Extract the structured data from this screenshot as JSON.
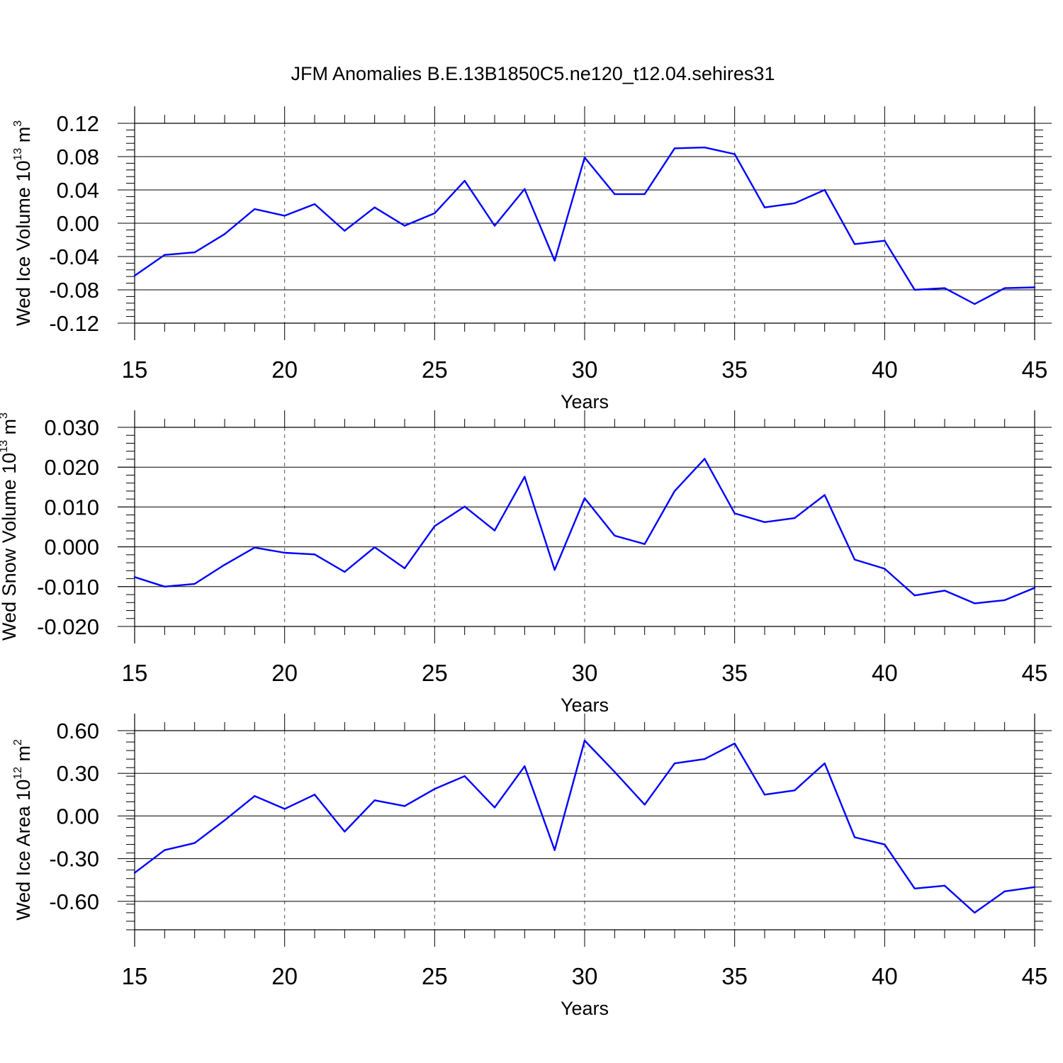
{
  "title": "JFM Anomalies B.E.13B1850C5.ne120_t12.04.sehires31",
  "line_color": "#0000ff",
  "chart_data": [
    {
      "type": "line",
      "ylabel_main": "Wed Ice Volume 10",
      "ylabel_exp": "13",
      "ylabel_unit": " m",
      "ylabel_unit_exp": "3",
      "xlabel": "Years",
      "xlim": [
        15,
        45
      ],
      "ylim": [
        -0.12,
        0.12
      ],
      "yticks": [
        -0.12,
        -0.08,
        -0.04,
        0.0,
        0.04,
        0.08,
        0.12
      ],
      "ytick_labels": [
        "-0.12",
        "-0.08",
        "-0.04",
        "0.00",
        "0.04",
        "0.08",
        "0.12"
      ],
      "xticks": [
        15,
        20,
        25,
        30,
        35,
        40,
        45
      ],
      "xtick_labels": [
        "15",
        "20",
        "25",
        "30",
        "35",
        "40",
        "45"
      ],
      "grid_x": true,
      "x": [
        15,
        16,
        17,
        18,
        19,
        20,
        21,
        22,
        23,
        24,
        25,
        26,
        27,
        28,
        29,
        30,
        31,
        32,
        33,
        34,
        35,
        36,
        37,
        38,
        39,
        40,
        41,
        42,
        43,
        44,
        45
      ],
      "y": [
        -0.063,
        -0.038,
        -0.035,
        -0.013,
        0.017,
        0.009,
        0.023,
        -0.009,
        0.019,
        -0.003,
        0.012,
        0.051,
        -0.003,
        0.041,
        -0.045,
        0.079,
        0.035,
        0.035,
        0.09,
        0.091,
        0.083,
        0.019,
        0.024,
        0.04,
        -0.025,
        -0.021,
        -0.08,
        -0.078,
        -0.097,
        -0.078,
        -0.077
      ]
    },
    {
      "type": "line",
      "ylabel_main": "Wed Snow Volume 10",
      "ylabel_exp": "13",
      "ylabel_unit": " m",
      "ylabel_unit_exp": "3",
      "xlabel": "Years",
      "xlim": [
        15,
        45
      ],
      "ylim": [
        -0.02,
        0.03
      ],
      "yticks": [
        -0.02,
        -0.01,
        0.0,
        0.01,
        0.02,
        0.03
      ],
      "ytick_labels": [
        "-0.020",
        "-0.010",
        "0.000",
        "0.010",
        "0.020",
        "0.030"
      ],
      "xticks": [
        15,
        20,
        25,
        30,
        35,
        40,
        45
      ],
      "xtick_labels": [
        "15",
        "20",
        "25",
        "30",
        "35",
        "40",
        "45"
      ],
      "grid_x": true,
      "x": [
        15,
        16,
        17,
        18,
        19,
        20,
        21,
        22,
        23,
        24,
        25,
        26,
        27,
        28,
        29,
        30,
        31,
        32,
        33,
        34,
        35,
        36,
        37,
        38,
        39,
        40,
        41,
        42,
        43,
        44,
        45
      ],
      "y": [
        -0.0076,
        -0.01,
        -0.0093,
        -0.0045,
        -0.0002,
        -0.0015,
        -0.0019,
        -0.0063,
        -0.0001,
        -0.0054,
        0.0052,
        0.0101,
        0.0041,
        0.0176,
        -0.0058,
        0.0122,
        0.0028,
        0.0007,
        0.014,
        0.0221,
        0.0084,
        0.0062,
        0.0072,
        0.013,
        -0.0032,
        -0.0055,
        -0.0122,
        -0.011,
        -0.0142,
        -0.0134,
        -0.0103
      ]
    },
    {
      "type": "line",
      "ylabel_main": "Wed Ice Area 10",
      "ylabel_exp": "12",
      "ylabel_unit": " m",
      "ylabel_unit_exp": "2",
      "xlabel": "Years",
      "xlim": [
        15,
        45
      ],
      "ylim": [
        -0.8,
        0.6
      ],
      "yticks": [
        -0.6,
        -0.3,
        0.0,
        0.3,
        0.6
      ],
      "ytick_labels": [
        "-0.60",
        "-0.30",
        "0.00",
        "0.30",
        "0.60"
      ],
      "xticks": [
        15,
        20,
        25,
        30,
        35,
        40,
        45
      ],
      "xtick_labels": [
        "15",
        "20",
        "25",
        "30",
        "35",
        "40",
        "45"
      ],
      "grid_x": true,
      "x": [
        15,
        16,
        17,
        18,
        19,
        20,
        21,
        22,
        23,
        24,
        25,
        26,
        27,
        28,
        29,
        30,
        31,
        32,
        33,
        34,
        35,
        36,
        37,
        38,
        39,
        40,
        41,
        42,
        43,
        44,
        45
      ],
      "y": [
        -0.4,
        -0.24,
        -0.19,
        -0.03,
        0.14,
        0.05,
        0.15,
        -0.11,
        0.11,
        0.07,
        0.19,
        0.28,
        0.06,
        0.35,
        -0.24,
        0.53,
        0.31,
        0.08,
        0.37,
        0.4,
        0.51,
        0.15,
        0.18,
        0.37,
        -0.15,
        -0.2,
        -0.51,
        -0.49,
        -0.68,
        -0.53,
        -0.5
      ]
    }
  ]
}
